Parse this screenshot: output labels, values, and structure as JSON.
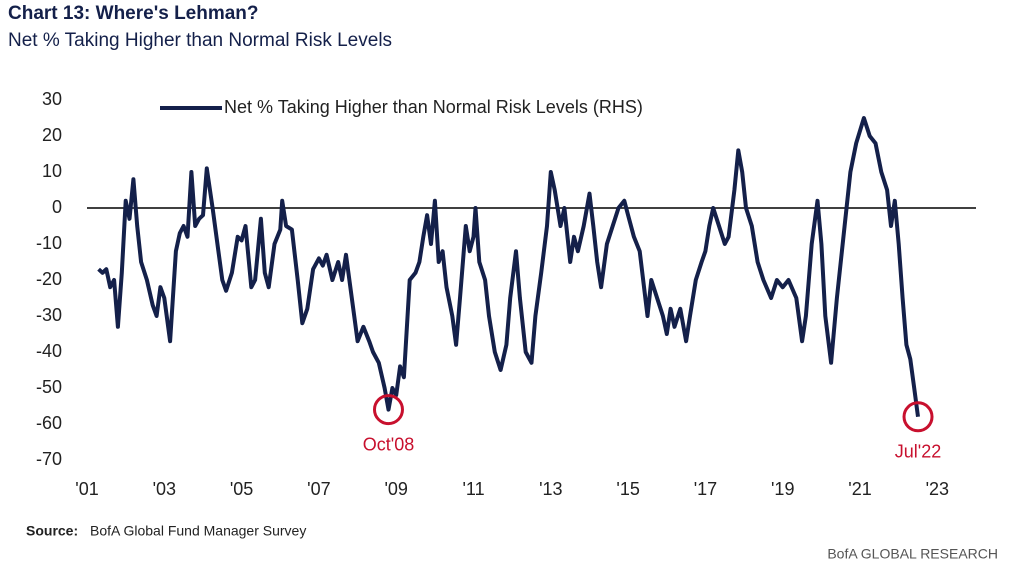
{
  "chart_data": {
    "type": "line",
    "title": "Chart 13: Where's Lehman?",
    "subtitle": "Net % Taking Higher than Normal Risk Levels",
    "source_label": "Source:",
    "source": "BofA Global Fund Manager Survey",
    "footer": "BofA GLOBAL RESEARCH",
    "xlim": [
      2001,
      2024
    ],
    "ylim": [
      -70,
      30
    ],
    "xticks": [
      {
        "value": 2001,
        "label": "'01"
      },
      {
        "value": 2003,
        "label": "'03"
      },
      {
        "value": 2005,
        "label": "'05"
      },
      {
        "value": 2007,
        "label": "'07"
      },
      {
        "value": 2009,
        "label": "'09"
      },
      {
        "value": 2011,
        "label": "'11"
      },
      {
        "value": 2013,
        "label": "'13"
      },
      {
        "value": 2015,
        "label": "'15"
      },
      {
        "value": 2017,
        "label": "'17"
      },
      {
        "value": 2019,
        "label": "'19"
      },
      {
        "value": 2021,
        "label": "'21"
      },
      {
        "value": 2023,
        "label": "'23"
      }
    ],
    "yticks": [
      30,
      20,
      10,
      0,
      -10,
      -20,
      -30,
      -40,
      -50,
      -60,
      -70
    ],
    "zero_line": true,
    "x": [
      2001.3,
      2001.4,
      2001.5,
      2001.6,
      2001.7,
      2001.8,
      2001.9,
      2002.0,
      2002.1,
      2002.2,
      2002.3,
      2002.4,
      2002.55,
      2002.7,
      2002.8,
      2002.9,
      2003.0,
      2003.15,
      2003.3,
      2003.4,
      2003.5,
      2003.6,
      2003.7,
      2003.8,
      2003.9,
      2004.0,
      2004.1,
      2004.25,
      2004.4,
      2004.5,
      2004.6,
      2004.75,
      2004.9,
      2005.0,
      2005.1,
      2005.25,
      2005.35,
      2005.5,
      2005.6,
      2005.7,
      2005.85,
      2006.0,
      2006.05,
      2006.15,
      2006.3,
      2006.45,
      2006.57,
      2006.7,
      2006.85,
      2007.0,
      2007.1,
      2007.2,
      2007.35,
      2007.5,
      2007.6,
      2007.7,
      2007.85,
      2008.0,
      2008.15,
      2008.3,
      2008.4,
      2008.55,
      2008.7,
      2008.8,
      2008.9,
      2009.0,
      2009.1,
      2009.2,
      2009.35,
      2009.5,
      2009.6,
      2009.7,
      2009.8,
      2009.9,
      2010.0,
      2010.1,
      2010.2,
      2010.3,
      2010.45,
      2010.55,
      2010.65,
      2010.8,
      2010.9,
      2011.0,
      2011.05,
      2011.15,
      2011.3,
      2011.4,
      2011.55,
      2011.7,
      2011.85,
      2011.95,
      2012.1,
      2012.2,
      2012.35,
      2012.5,
      2012.6,
      2012.75,
      2012.9,
      2013.0,
      2013.1,
      2013.25,
      2013.35,
      2013.5,
      2013.6,
      2013.7,
      2013.85,
      2014.0,
      2014.1,
      2014.2,
      2014.3,
      2014.45,
      2014.6,
      2014.75,
      2014.9,
      2015.0,
      2015.15,
      2015.3,
      2015.5,
      2015.6,
      2015.75,
      2015.9,
      2016.0,
      2016.1,
      2016.2,
      2016.35,
      2016.5,
      2016.6,
      2016.75,
      2016.9,
      2017.0,
      2017.1,
      2017.2,
      2017.35,
      2017.5,
      2017.6,
      2017.75,
      2017.85,
      2017.95,
      2018.05,
      2018.2,
      2018.35,
      2018.5,
      2018.7,
      2018.85,
      2019.0,
      2019.15,
      2019.35,
      2019.5,
      2019.6,
      2019.75,
      2019.9,
      2020.0,
      2020.1,
      2020.25,
      2020.4,
      2020.6,
      2020.75,
      2020.9,
      2021.1,
      2021.25,
      2021.4,
      2021.55,
      2021.7,
      2021.8,
      2021.9,
      2022.0,
      2022.1,
      2022.2,
      2022.3,
      2022.4,
      2022.5
    ],
    "series": [
      {
        "name": "Net % Taking Higher than Normal Risk Levels (RHS)",
        "color": "#14204a",
        "values": [
          -17,
          -18,
          -17,
          -22,
          -20,
          -33,
          -18,
          2,
          -3,
          8,
          -5,
          -15,
          -20,
          -27,
          -30,
          -22,
          -25,
          -37,
          -12,
          -7,
          -5,
          -8,
          10,
          -5,
          -3,
          -2,
          11,
          0,
          -12,
          -20,
          -23,
          -18,
          -8,
          -9,
          -5,
          -22,
          -20,
          -3,
          -18,
          -22,
          -10,
          -6,
          2,
          -5,
          -6,
          -20,
          -32,
          -28,
          -17,
          -14,
          -16,
          -13,
          -20,
          -15,
          -20,
          -13,
          -25,
          -37,
          -33,
          -37,
          -40,
          -43,
          -50,
          -56,
          -50,
          -52,
          -44,
          -47,
          -20,
          -18,
          -15,
          -8,
          -2,
          -10,
          2,
          -15,
          -12,
          -22,
          -30,
          -38,
          -25,
          -5,
          -12,
          -8,
          0,
          -15,
          -20,
          -30,
          -40,
          -45,
          -38,
          -25,
          -12,
          -25,
          -40,
          -43,
          -30,
          -18,
          -5,
          10,
          5,
          -5,
          0,
          -15,
          -8,
          -12,
          -5,
          4,
          -5,
          -15,
          -22,
          -10,
          -5,
          0,
          2,
          -2,
          -8,
          -12,
          -30,
          -20,
          -25,
          -30,
          -35,
          -28,
          -33,
          -28,
          -37,
          -30,
          -20,
          -15,
          -12,
          -5,
          0,
          -5,
          -10,
          -8,
          5,
          16,
          10,
          0,
          -5,
          -15,
          -20,
          -25,
          -20,
          -22,
          -20,
          -25,
          -37,
          -30,
          -10,
          2,
          -10,
          -30,
          -43,
          -25,
          -5,
          10,
          18,
          25,
          20,
          18,
          10,
          5,
          -5,
          2,
          -10,
          -25,
          -38,
          -42,
          -50,
          -58
        ]
      }
    ],
    "annotations": [
      {
        "text": "Oct'08",
        "x": 2008.8,
        "y": -56,
        "color": "#c8102e"
      },
      {
        "text": "Jul'22",
        "x": 2022.5,
        "y": -58,
        "color": "#c8102e"
      }
    ]
  }
}
